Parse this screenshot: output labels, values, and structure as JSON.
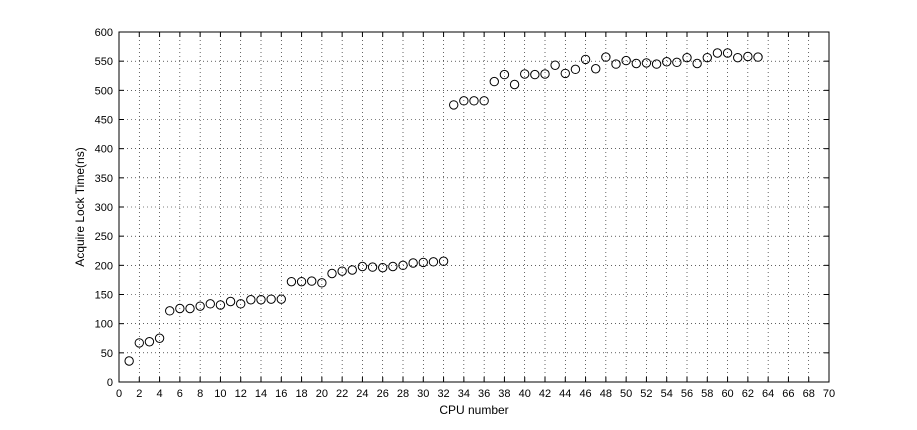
{
  "chart_data": {
    "type": "scatter",
    "xlabel": "CPU number",
    "ylabel": "Acquire Lock Time(ns)",
    "xlim": [
      0,
      70
    ],
    "ylim": [
      0,
      600
    ],
    "xticks": [
      0,
      2,
      4,
      6,
      8,
      10,
      12,
      14,
      16,
      18,
      20,
      22,
      24,
      26,
      28,
      30,
      32,
      34,
      36,
      38,
      40,
      42,
      44,
      46,
      48,
      50,
      52,
      54,
      56,
      58,
      60,
      62,
      64,
      66,
      68,
      70
    ],
    "yticks": [
      0,
      50,
      100,
      150,
      200,
      250,
      300,
      350,
      400,
      450,
      500,
      550,
      600
    ],
    "grid": true,
    "marker": "circle-open",
    "marker_color": "#000000",
    "series": [
      {
        "x": [
          1,
          2,
          3,
          4,
          5,
          6,
          7,
          8,
          9,
          10,
          11,
          12,
          13,
          14,
          15,
          16,
          17,
          18,
          19,
          20,
          21,
          22,
          23,
          24,
          25,
          26,
          27,
          28,
          29,
          30,
          31,
          32,
          33,
          34,
          35,
          36,
          37,
          38,
          39,
          40,
          41,
          42,
          43,
          44,
          45,
          46,
          47,
          48,
          49,
          50,
          51,
          52,
          53,
          54,
          55,
          56,
          57,
          58,
          59,
          60,
          61,
          62,
          63
        ],
        "y": [
          36,
          67,
          69,
          75,
          122,
          126,
          126,
          130,
          134,
          132,
          138,
          134,
          141,
          141,
          142,
          142,
          172,
          172,
          173,
          170,
          186,
          190,
          192,
          198,
          197,
          196,
          198,
          200,
          204,
          205,
          206,
          207,
          475,
          482,
          482,
          482,
          515,
          527,
          510,
          528,
          527,
          528,
          543,
          529,
          536,
          553,
          537,
          557,
          545,
          551,
          546,
          547,
          545,
          549,
          548,
          556,
          546,
          556,
          564,
          564,
          556,
          558,
          557
        ]
      }
    ]
  }
}
